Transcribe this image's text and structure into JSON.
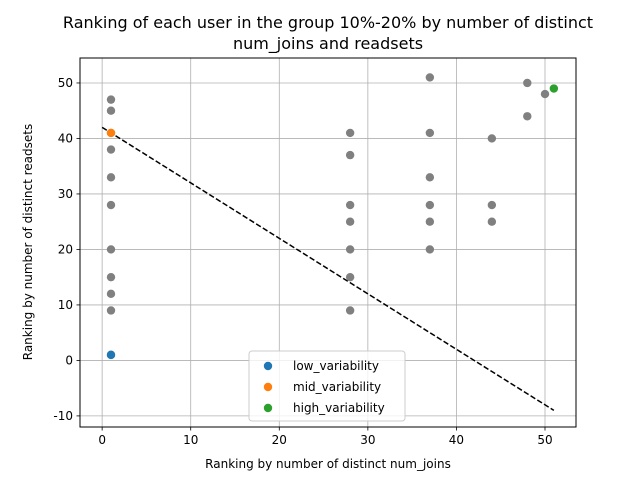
{
  "chart_data": {
    "type": "scatter",
    "title_lines": [
      "Ranking of each user in the group 10%-20% by number of distinct",
      "num_joins and readsets"
    ],
    "xlabel": "Ranking by number of distinct num_joins",
    "ylabel": "Ranking by number of distinct readsets",
    "xlim": [
      -2.5,
      53.5
    ],
    "ylim": [
      -12,
      54.5
    ],
    "xticks": [
      0,
      10,
      20,
      30,
      40,
      50
    ],
    "yticks": [
      -10,
      0,
      10,
      20,
      30,
      40,
      50
    ],
    "grid": true,
    "legend_position": "bottom-center",
    "background_points": {
      "color": "#808080",
      "x": [
        1,
        1,
        1,
        1,
        1,
        1,
        1,
        1,
        1,
        1,
        1,
        28,
        28,
        28,
        28,
        28,
        28,
        28,
        37,
        37,
        37,
        37,
        37,
        37,
        44,
        44,
        44,
        48,
        48,
        50
      ],
      "y": [
        47,
        45,
        38,
        33,
        28,
        20,
        15,
        12,
        9,
        41,
        1,
        41,
        37,
        28,
        25,
        20,
        15,
        9,
        51,
        41,
        33,
        28,
        25,
        20,
        40,
        28,
        25,
        50,
        44,
        48
      ]
    },
    "series": [
      {
        "name": "low_variability",
        "color": "#1f77b4",
        "x": [
          1
        ],
        "y": [
          1
        ]
      },
      {
        "name": "mid_variability",
        "color": "#ff7f0e",
        "x": [
          1
        ],
        "y": [
          41
        ]
      },
      {
        "name": "high_variability",
        "color": "#2ca02c",
        "x": [
          51
        ],
        "y": [
          49
        ]
      }
    ],
    "trend_line": {
      "color": "#000000",
      "style": "dashed",
      "x": [
        0,
        51
      ],
      "y": [
        42,
        -9
      ]
    }
  }
}
